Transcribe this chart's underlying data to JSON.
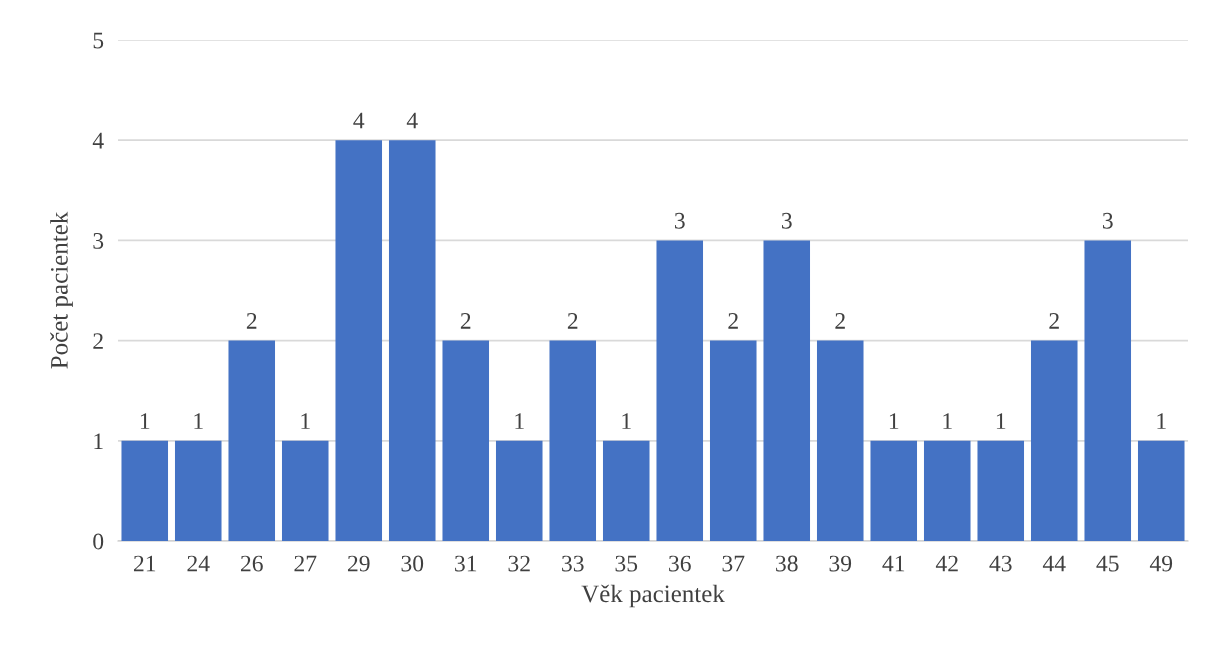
{
  "chart_data": {
    "type": "bar",
    "xlabel": "Věk pacientek",
    "ylabel": "Počet pacientek",
    "categories": [
      "21",
      "24",
      "26",
      "27",
      "29",
      "30",
      "31",
      "32",
      "33",
      "35",
      "36",
      "37",
      "38",
      "39",
      "41",
      "42",
      "43",
      "44",
      "45",
      "49"
    ],
    "values": [
      1,
      1,
      2,
      1,
      4,
      4,
      2,
      1,
      2,
      1,
      3,
      2,
      3,
      2,
      1,
      1,
      1,
      2,
      3,
      1
    ],
    "color": "#4472c4",
    "ylim": [
      0,
      5
    ],
    "yticks": [
      0,
      1,
      2,
      3,
      4,
      5
    ],
    "grid": "y",
    "data_labels": true,
    "legend": false
  }
}
